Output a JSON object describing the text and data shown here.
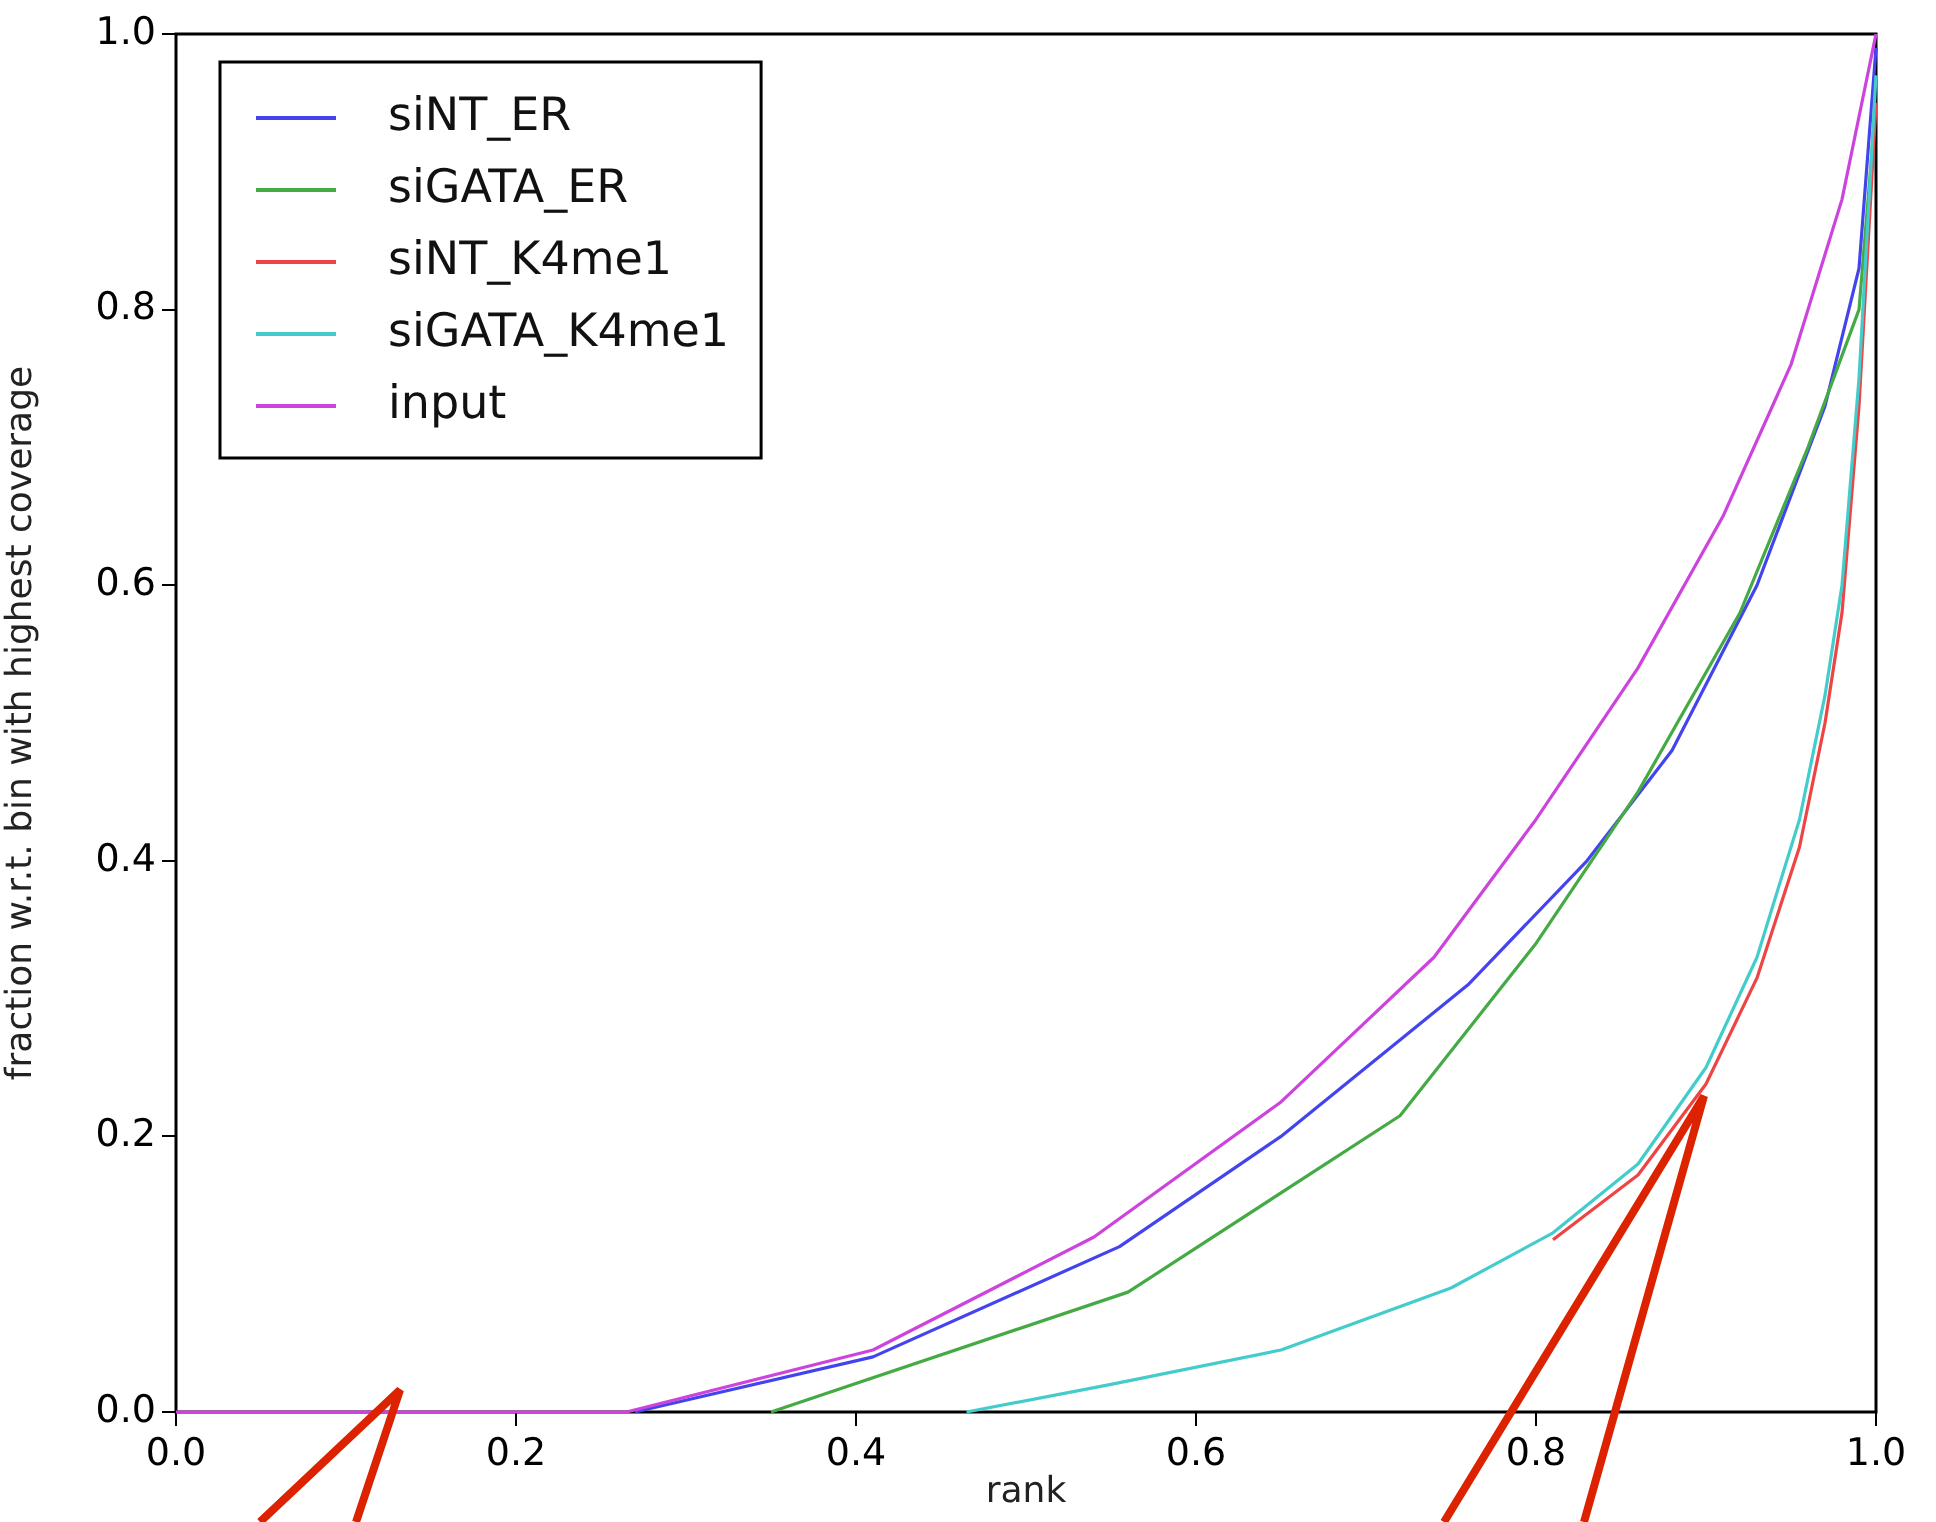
{
  "chart_data": {
    "type": "line",
    "xlabel": "rank",
    "ylabel": "fraction w.r.t. bin with highest coverage",
    "xlim": [
      0,
      1
    ],
    "ylim": [
      0,
      1
    ],
    "xticks": [
      {
        "value": 0,
        "label": "0.0"
      },
      {
        "value": 0.2,
        "label": "0.2"
      },
      {
        "value": 0.4,
        "label": "0.4"
      },
      {
        "value": 0.6,
        "label": "0.6"
      },
      {
        "value": 0.8,
        "label": "0.8"
      },
      {
        "value": 1,
        "label": "1.0"
      }
    ],
    "yticks": [
      {
        "value": 0,
        "label": "0.0"
      },
      {
        "value": 0.2,
        "label": "0.2"
      },
      {
        "value": 0.4,
        "label": "0.4"
      },
      {
        "value": 0.6,
        "label": "0.6"
      },
      {
        "value": 0.8,
        "label": "0.8"
      },
      {
        "value": 1,
        "label": "1.0"
      }
    ],
    "grid": false,
    "legend": "top left",
    "marker": "none",
    "line_style": "solid",
    "series": [
      {
        "name": "siNT_ER",
        "color": "#4444ee",
        "x": [
          0.27,
          0.41,
          0.555,
          0.65,
          0.76,
          0.83,
          0.88,
          0.93,
          0.97,
          0.99,
          1.0
        ],
        "values": [
          0,
          0.04,
          0.12,
          0.2,
          0.31,
          0.4,
          0.48,
          0.6,
          0.73,
          0.83,
          0.99
        ]
      },
      {
        "name": "siGATA_ER",
        "color": "#44aa44",
        "x": [
          0.35,
          0.56,
          0.72,
          0.8,
          0.86,
          0.92,
          0.96,
          0.99,
          1.0
        ],
        "values": [
          0,
          0.087,
          0.215,
          0.34,
          0.45,
          0.58,
          0.7,
          0.8,
          0.95
        ]
      },
      {
        "name": "siNT_K4me1",
        "color": "#ee4444",
        "x": [
          0.81,
          0.86,
          0.9,
          0.93,
          0.955,
          0.97,
          0.98,
          0.99,
          1.0
        ],
        "values": [
          0.125,
          0.172,
          0.238,
          0.315,
          0.41,
          0.5,
          0.58,
          0.73,
          0.95
        ]
      },
      {
        "name": "siGATA_K4me1",
        "color": "#44cccc",
        "x": [
          0.465,
          0.55,
          0.65,
          0.75,
          0.81,
          0.86,
          0.9,
          0.93,
          0.955,
          0.97,
          0.98,
          0.99,
          1.0
        ],
        "values": [
          0,
          0.02,
          0.045,
          0.09,
          0.13,
          0.18,
          0.25,
          0.33,
          0.43,
          0.52,
          0.6,
          0.75,
          0.97
        ]
      },
      {
        "name": "input",
        "color": "#cc44dd",
        "x": [
          0,
          0.265,
          0.41,
          0.54,
          0.65,
          0.74,
          0.8,
          0.86,
          0.91,
          0.95,
          0.98,
          1.0
        ],
        "values": [
          0,
          0,
          0.045,
          0.127,
          0.225,
          0.33,
          0.43,
          0.54,
          0.65,
          0.76,
          0.88,
          1.0
        ]
      }
    ]
  }
}
